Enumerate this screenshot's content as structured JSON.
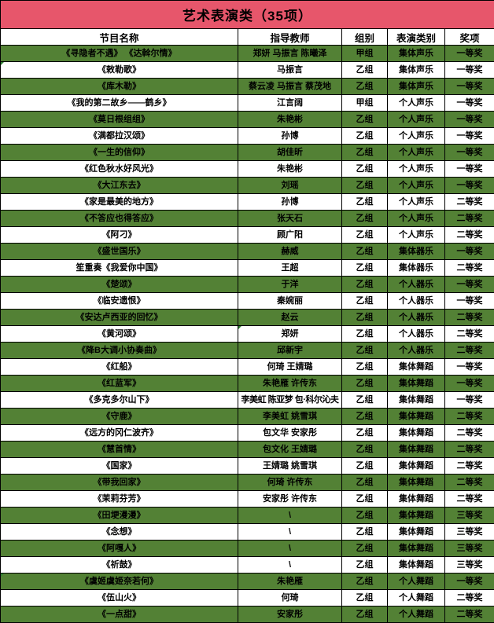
{
  "title": "艺术表演类（35项）",
  "columns": [
    "节目名称",
    "指导教师",
    "组别",
    "表演类别",
    "奖项"
  ],
  "colors": {
    "title_bg": "#e7566b",
    "green_row": "#538135",
    "white_row": "#ffffff",
    "border": "#000000",
    "text": "#000000"
  },
  "rows": [
    {
      "name": "《寻隐者不遇》 《达斡尔情》",
      "teacher": "郑妍 马振言 陈曦泽",
      "group": "甲组",
      "category": "集体声乐",
      "award": "一等奖"
    },
    {
      "name": "《敕勒歌》",
      "teacher": "马振言",
      "group": "乙组",
      "category": "集体声乐",
      "award": "一等奖"
    },
    {
      "name": "《库木勒》",
      "teacher": "蔡云凌 马振言 蔡茂地",
      "group": "乙组",
      "category": "集体声乐",
      "award": "一等奖"
    },
    {
      "name": "《我的第二故乡——鹤乡》",
      "teacher": "江言阔",
      "group": "甲组",
      "category": "个人声乐",
      "award": "一等奖"
    },
    {
      "name": "《莫日根组组》",
      "teacher": "朱艳彬",
      "group": "乙组",
      "category": "个人声乐",
      "award": "一等奖"
    },
    {
      "name": "《满都拉汉颂》",
      "teacher": "孙博",
      "group": "乙组",
      "category": "个人声乐",
      "award": "一等奖"
    },
    {
      "name": "《一生的信仰》",
      "teacher": "胡佳昕",
      "group": "乙组",
      "category": "个人声乐",
      "award": "一等奖"
    },
    {
      "name": "《红色秋水好风光》",
      "teacher": "朱艳彬",
      "group": "乙组",
      "category": "个人声乐",
      "award": "一等奖"
    },
    {
      "name": "《大江东去》",
      "teacher": "刘瑶",
      "group": "乙组",
      "category": "个人声乐",
      "award": "一等奖"
    },
    {
      "name": "《家是最美的地方》",
      "teacher": "孙博",
      "group": "乙组",
      "category": "个人声乐",
      "award": "二等奖"
    },
    {
      "name": "《不答应也得答应》",
      "teacher": "张天石",
      "group": "乙组",
      "category": "个人声乐",
      "award": "二等奖"
    },
    {
      "name": "《阿刁》",
      "teacher": "顾广阳",
      "group": "乙组",
      "category": "个人声乐",
      "award": "二等奖"
    },
    {
      "name": "《盛世国乐》",
      "teacher": "赫威",
      "group": "乙组",
      "category": "集体器乐",
      "award": "一等奖"
    },
    {
      "name": "笙重奏《我爱你中国》",
      "teacher": "王超",
      "group": "乙组",
      "category": "集体器乐",
      "award": "二等奖"
    },
    {
      "name": "《楚颂》",
      "teacher": "于洋",
      "group": "乙组",
      "category": "个人器乐",
      "award": "一等奖"
    },
    {
      "name": "《临安遗恨》",
      "teacher": "秦婉丽",
      "group": "乙组",
      "category": "个人器乐",
      "award": "一等奖"
    },
    {
      "name": "《安达卢西亚的回忆》",
      "teacher": "赵云",
      "group": "乙组",
      "category": "个人器乐",
      "award": "二等奖"
    },
    {
      "name": "《黄河颂》",
      "teacher": "郑妍",
      "group": "乙组",
      "category": "个人器乐",
      "award": "二等奖"
    },
    {
      "name": "《降B大调小协奏曲》",
      "teacher": "邱新宇",
      "group": "乙组",
      "category": "个人器乐",
      "award": "二等奖"
    },
    {
      "name": "《红船》",
      "teacher": "何琦 王婧璐",
      "group": "乙组",
      "category": "集体舞蹈",
      "award": "一等奖"
    },
    {
      "name": "《红蓝军》",
      "teacher": "朱艳雁 许传东",
      "group": "乙组",
      "category": "集体舞蹈",
      "award": "一等奖"
    },
    {
      "name": "《多克多尔山下》",
      "teacher": "李美虹 陈亚梦 包·科尔沁夫",
      "group": "乙组",
      "category": "集体舞蹈",
      "award": "一等奖",
      "teacher_small": true
    },
    {
      "name": "《守鹿》",
      "teacher": "李美虹 姚雪琪",
      "group": "乙组",
      "category": "集体舞蹈",
      "award": "二等奖"
    },
    {
      "name": "《远方的冈仁波齐》",
      "teacher": "包文华 安家彤",
      "group": "乙组",
      "category": "集体舞蹈",
      "award": "二等奖"
    },
    {
      "name": "《慧首情》",
      "teacher": "包文化 王婧璐",
      "group": "乙组",
      "category": "集体舞蹈",
      "award": "二等奖"
    },
    {
      "name": "《国家》",
      "teacher": "王婧璐 姚雪琪",
      "group": "乙组",
      "category": "集体舞蹈",
      "award": "二等奖"
    },
    {
      "name": "《带我回家》",
      "teacher": "何琦 许传东",
      "group": "乙组",
      "category": "集体舞蹈",
      "award": "二等奖"
    },
    {
      "name": "《茉莉芬芳》",
      "teacher": "安家彤 许传东",
      "group": "乙组",
      "category": "集体舞蹈",
      "award": "二等奖"
    },
    {
      "name": "《田埂漫漫》",
      "teacher": "\\",
      "group": "乙组",
      "category": "集体舞蹈",
      "award": "三等奖"
    },
    {
      "name": "《念想》",
      "teacher": "\\",
      "group": "乙组",
      "category": "集体舞蹈",
      "award": "三等奖"
    },
    {
      "name": "《阿嘎人》",
      "teacher": "\\",
      "group": "乙组",
      "category": "集体舞蹈",
      "award": "三等奖"
    },
    {
      "name": "《祈鼓》",
      "teacher": "\\",
      "group": "乙组",
      "category": "集体舞蹈",
      "award": "三等奖"
    },
    {
      "name": "《虞姬虞姬奈若何》",
      "teacher": "朱艳雁",
      "group": "乙组",
      "category": "个人舞蹈",
      "award": "一等奖"
    },
    {
      "name": "《伍山火》",
      "teacher": "何琦",
      "group": "乙组",
      "category": "个人舞蹈",
      "award": "二等奖"
    },
    {
      "name": "《一点甜》",
      "teacher": "安家彤",
      "group": "乙组",
      "category": "个人舞蹈",
      "award": "二等奖"
    }
  ],
  "corner_marks": [
    {
      "row": 2,
      "col": "name"
    },
    {
      "row": 18,
      "col": "teacher"
    },
    {
      "row": 33,
      "col": "name"
    }
  ]
}
